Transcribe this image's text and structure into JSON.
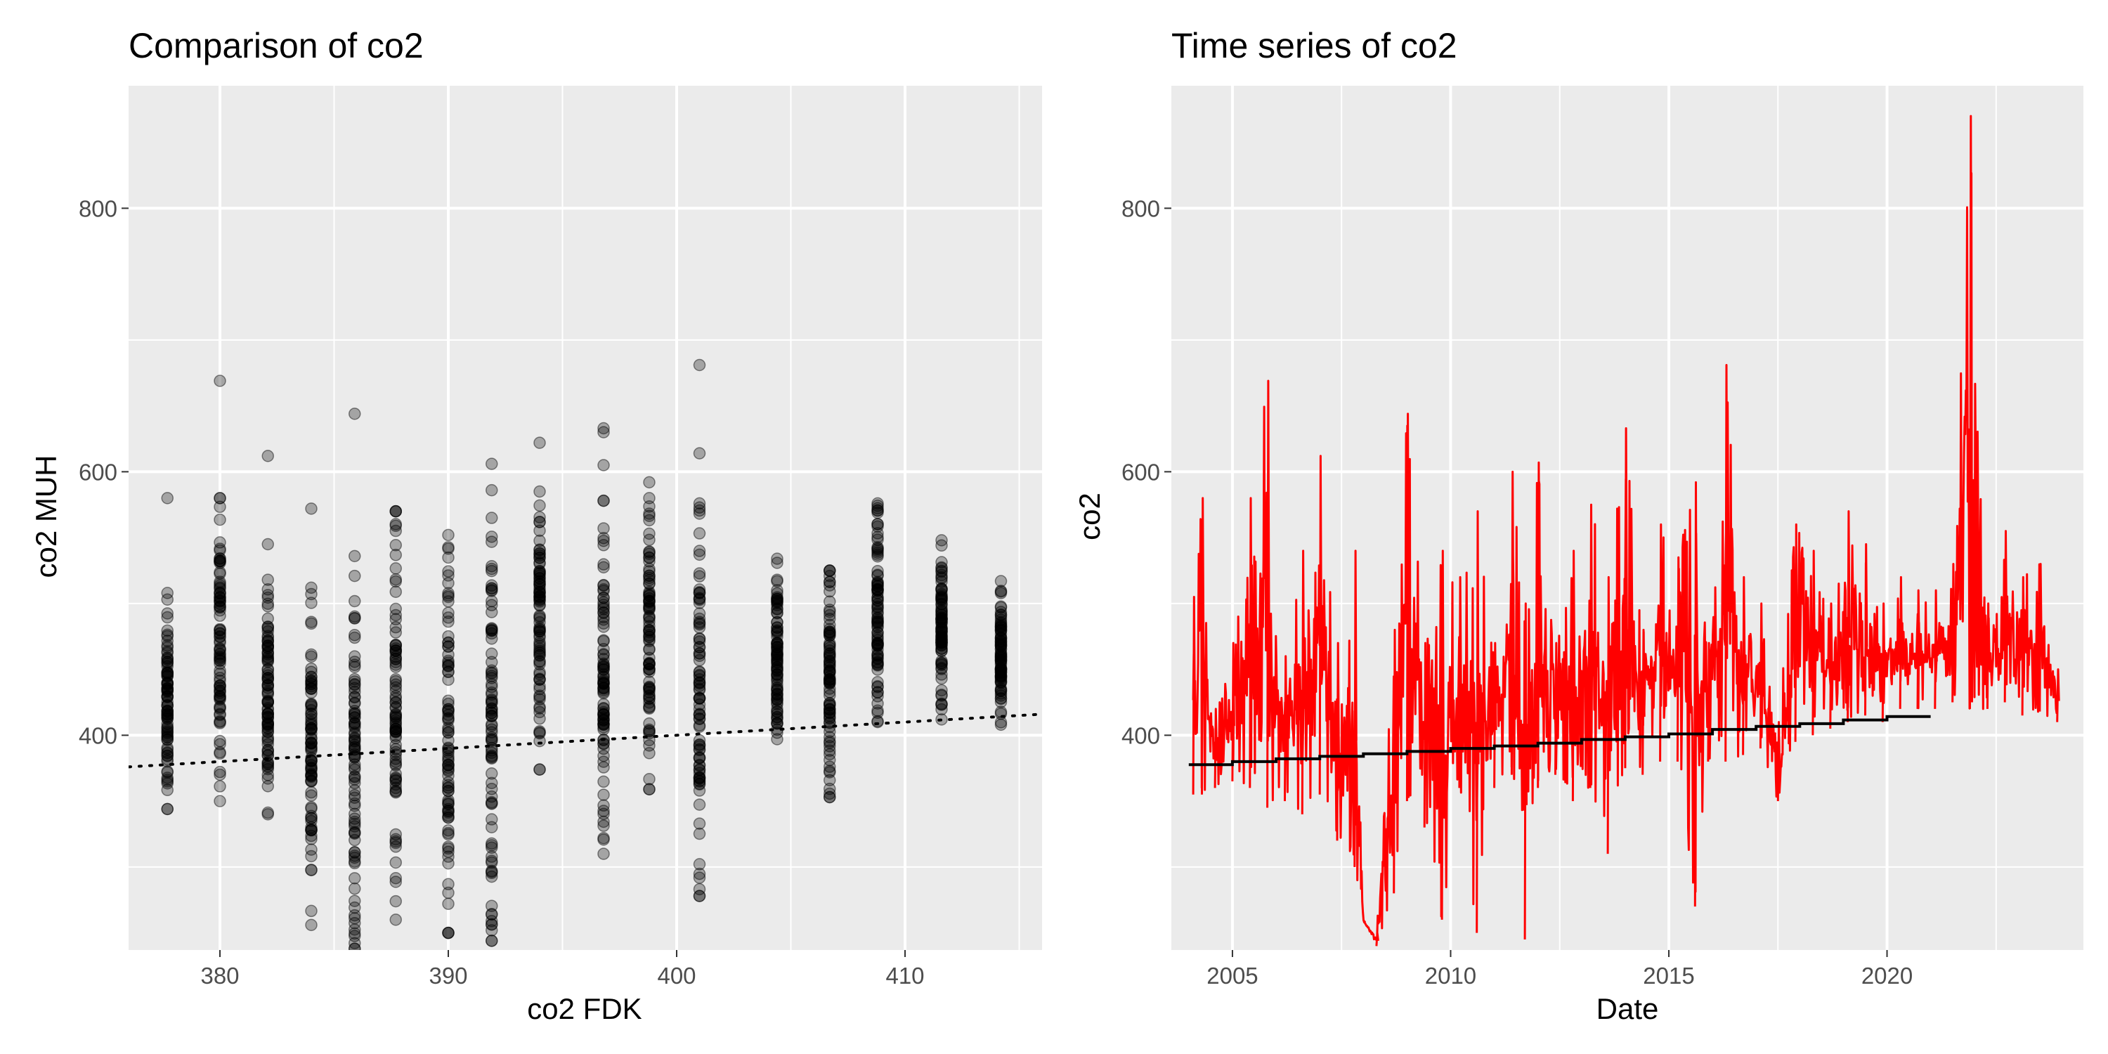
{
  "chart_data": [
    {
      "type": "scatter",
      "title": "Comparison of co2",
      "xlabel": "co2 FDK",
      "ylabel": "co2 MUH",
      "xlim": [
        376,
        416
      ],
      "ylim": [
        237,
        893
      ],
      "x_ticks": [
        380,
        390,
        400,
        410
      ],
      "y_ticks": [
        400,
        600,
        800
      ],
      "grid": true,
      "point_color": "#000000",
      "point_alpha": 0.3,
      "clusters": [
        {
          "x": 377.7,
          "ymin": 344,
          "ymax": 508,
          "outliers": [
            580
          ]
        },
        {
          "x": 380.0,
          "ymin": 350,
          "ymax": 580,
          "outliers": [
            669
          ]
        },
        {
          "x": 382.1,
          "ymin": 340,
          "ymax": 518,
          "outliers": [
            545,
            612
          ]
        },
        {
          "x": 384.0,
          "ymin": 256,
          "ymax": 512,
          "outliers": [
            572
          ]
        },
        {
          "x": 385.9,
          "ymin": 238,
          "ymax": 536,
          "outliers": [
            644
          ]
        },
        {
          "x": 387.7,
          "ymin": 260,
          "ymax": 570,
          "outliers": []
        },
        {
          "x": 390.0,
          "ymin": 250,
          "ymax": 552,
          "outliers": []
        },
        {
          "x": 391.9,
          "ymin": 244,
          "ymax": 586,
          "outliers": [
            606
          ]
        },
        {
          "x": 394.0,
          "ymin": 374,
          "ymax": 585,
          "outliers": [
            622
          ]
        },
        {
          "x": 396.8,
          "ymin": 310,
          "ymax": 578,
          "outliers": [
            605,
            630,
            633
          ]
        },
        {
          "x": 398.8,
          "ymin": 359,
          "ymax": 580,
          "outliers": [
            592
          ]
        },
        {
          "x": 401.0,
          "ymin": 278,
          "ymax": 576,
          "outliers": [
            614,
            681
          ]
        },
        {
          "x": 404.4,
          "ymin": 397,
          "ymax": 534,
          "outliers": []
        },
        {
          "x": 406.7,
          "ymin": 353,
          "ymax": 525,
          "outliers": []
        },
        {
          "x": 408.8,
          "ymin": 410,
          "ymax": 576,
          "outliers": []
        },
        {
          "x": 411.6,
          "ymin": 412,
          "ymax": 548,
          "outliers": []
        },
        {
          "x": 414.2,
          "ymin": 408,
          "ymax": 517,
          "outliers": []
        }
      ],
      "reference_line": {
        "style": "dotted",
        "color": "#000000",
        "from": [
          376,
          376
        ],
        "to": [
          416,
          416
        ]
      }
    },
    {
      "type": "line",
      "title": "Time series of co2",
      "xlabel": "Date",
      "ylabel": "co2",
      "xlim": [
        2003.6,
        2024.5
      ],
      "ylim": [
        237,
        893
      ],
      "x_ticks": [
        2005,
        2010,
        2015,
        2020
      ],
      "y_ticks": [
        400,
        600,
        800
      ],
      "grid": true,
      "series": [
        {
          "color": "#ff0000",
          "x": [
            2004.1,
            2004.3,
            2004.6,
            2005.0,
            2005.4,
            2005.8,
            2006.2,
            2006.6,
            2007.0,
            2007.4,
            2007.8,
            2008.0,
            2008.3,
            2008.7,
            2009.0,
            2009.4,
            2009.8,
            2010.2,
            2010.6,
            2011.0,
            2011.4,
            2011.7,
            2012.0,
            2012.4,
            2012.8,
            2013.2,
            2013.6,
            2014.0,
            2014.4,
            2014.8,
            2015.2,
            2015.6,
            2015.9,
            2016.3,
            2016.7,
            2017.1,
            2017.5,
            2017.9,
            2018.3,
            2018.7,
            2019.1,
            2019.5,
            2019.9,
            2020.3,
            2020.7,
            2021.1,
            2021.5,
            2021.9,
            2022.3,
            2022.7,
            2023.1,
            2023.5,
            2023.9
          ],
          "y": [
            505,
            580,
            420,
            470,
            580,
            669,
            460,
            540,
            612,
            470,
            540,
            258,
            250,
            480,
            644,
            470,
            540,
            520,
            570,
            470,
            600,
            500,
            607,
            470,
            540,
            575,
            520,
            633,
            480,
            560,
            535,
            592,
            470,
            681,
            520,
            500,
            410,
            560,
            540,
            500,
            570,
            545,
            500,
            520,
            510,
            510,
            530,
            870,
            500,
            555,
            520,
            530,
            450
          ],
          "low_y": [
            355,
            355,
            360,
            365,
            360,
            345,
            350,
            340,
            355,
            320,
            300,
            260,
            240,
            280,
            350,
            330,
            260,
            360,
            250,
            360,
            370,
            245,
            360,
            370,
            350,
            360,
            310,
            375,
            370,
            380,
            380,
            270,
            380,
            380,
            385,
            390,
            350,
            395,
            400,
            405,
            410,
            415,
            410,
            420,
            420,
            420,
            425,
            420,
            420,
            425,
            415,
            418,
            410
          ]
        },
        {
          "color": "#000000",
          "x": [
            2004.0,
            2005.0,
            2006.0,
            2007.0,
            2008.0,
            2009.0,
            2010.0,
            2011.0,
            2012.0,
            2013.0,
            2014.0,
            2015.0,
            2016.0,
            2017.0,
            2018.0,
            2019.0,
            2020.0,
            2021.0
          ],
          "y": [
            377.7,
            380.0,
            382.1,
            384.0,
            385.9,
            387.7,
            390.0,
            391.9,
            394.0,
            396.8,
            398.8,
            401.0,
            404.4,
            406.7,
            408.8,
            411.6,
            414.2,
            414.2
          ]
        }
      ]
    }
  ]
}
